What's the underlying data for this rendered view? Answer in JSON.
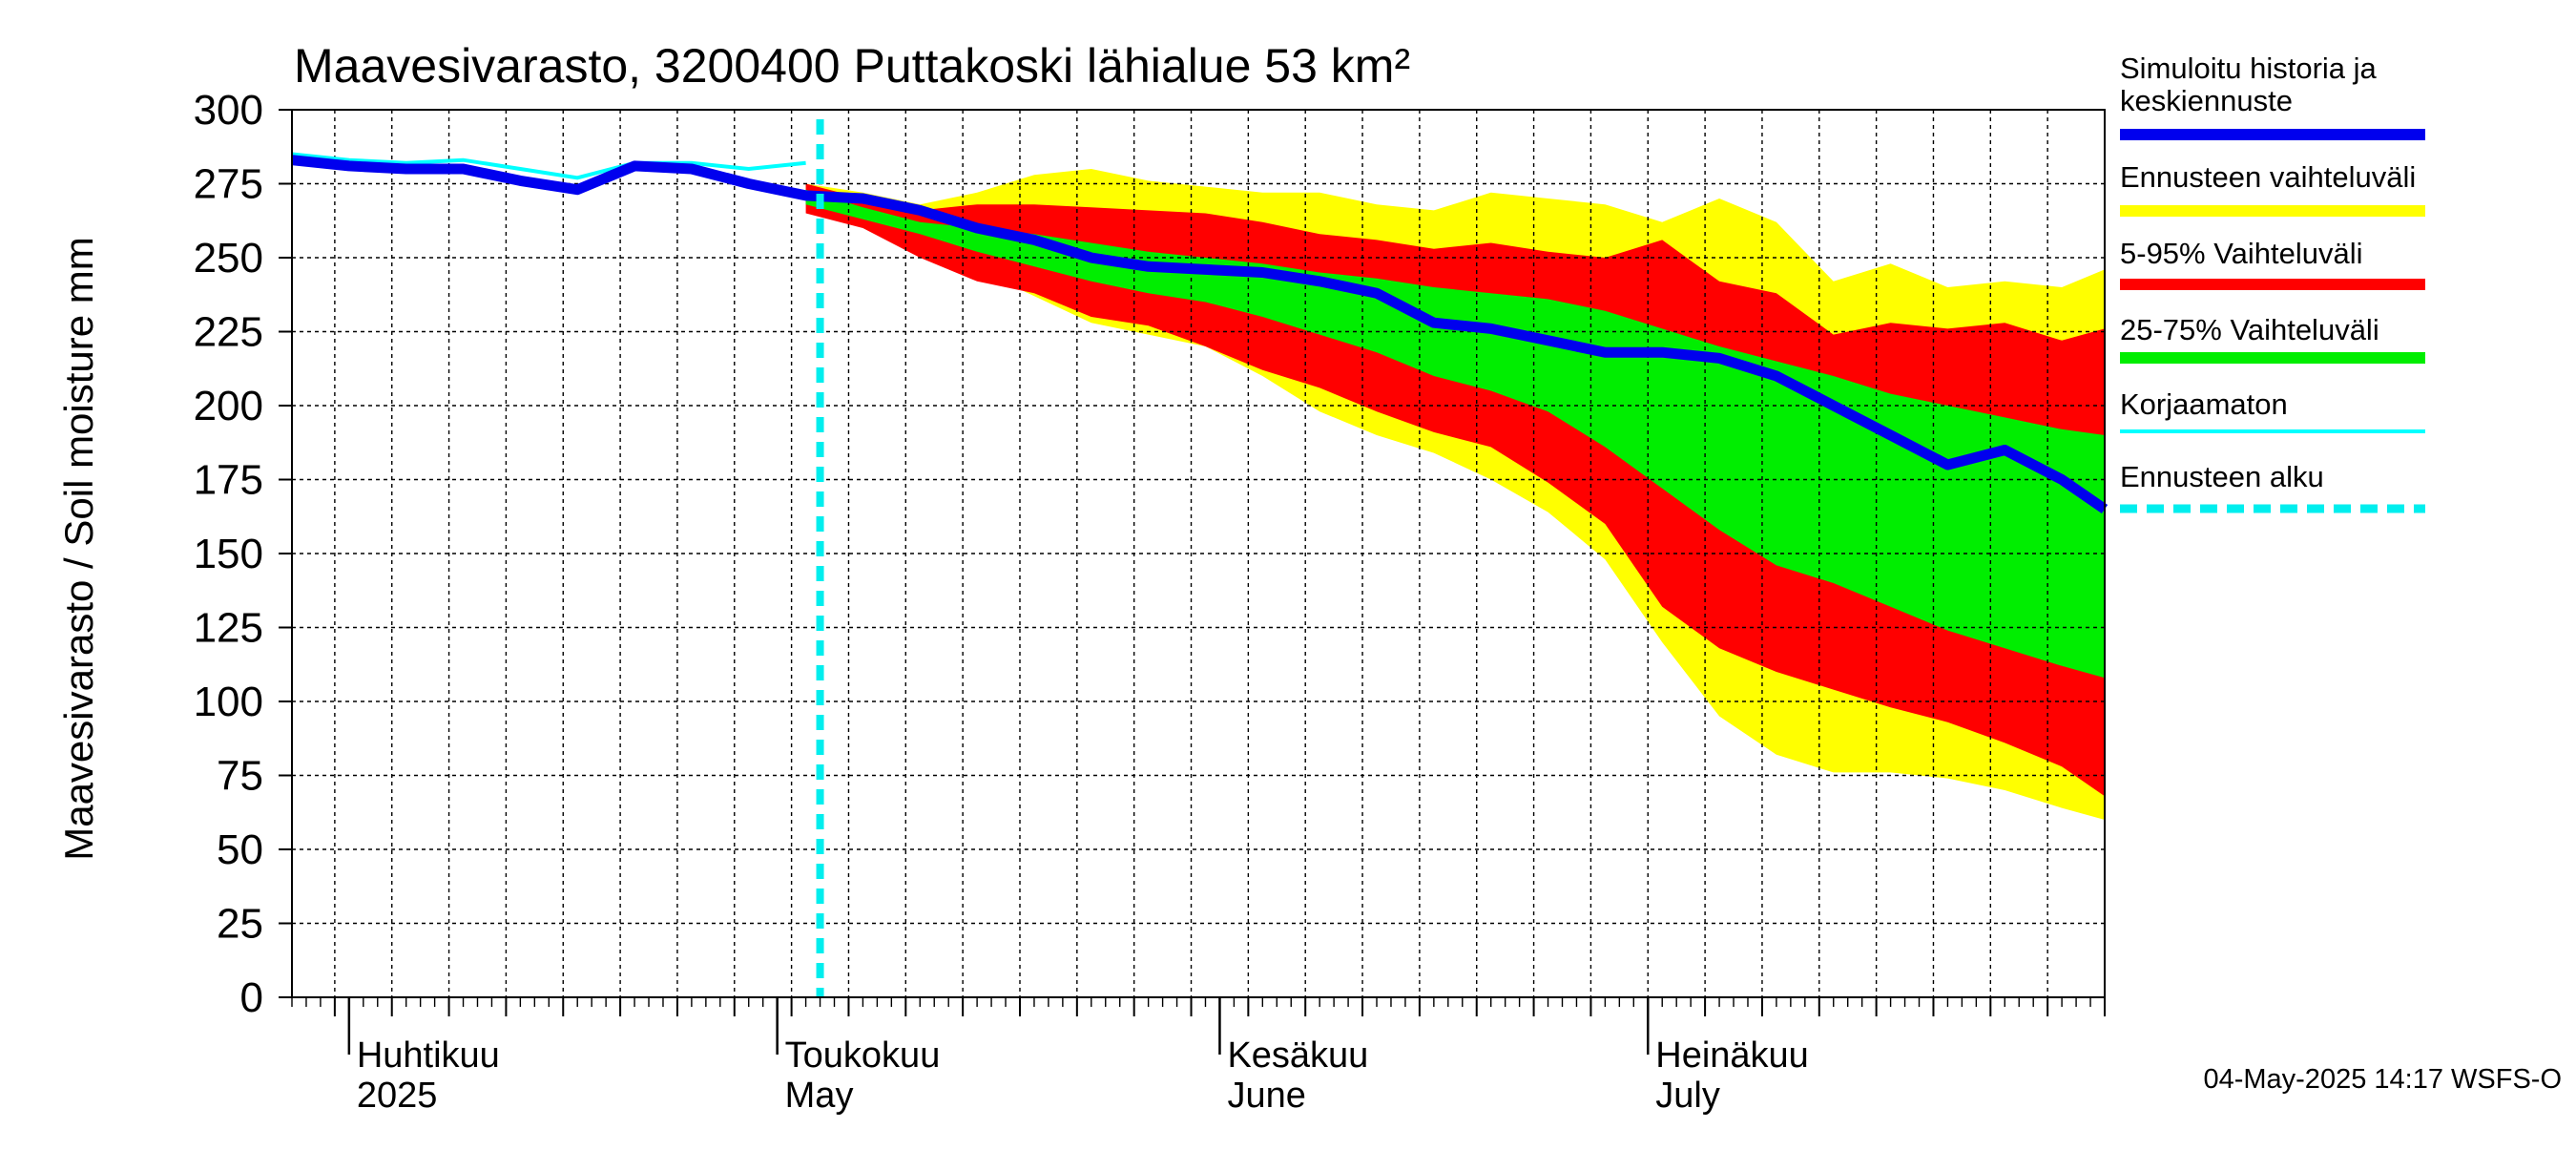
{
  "chart_data": {
    "type": "area",
    "title": "Maavesivarasto, 3200400 Puttakoski lähialue 53 km²",
    "ylabel": "Maavesivarasto / Soil moisture   mm",
    "xlabel": "",
    "ylim": [
      0,
      300
    ],
    "yticks": [
      0,
      25,
      50,
      75,
      100,
      125,
      150,
      175,
      200,
      225,
      250,
      275,
      300
    ],
    "x_start": "2025-03-28",
    "x_end": "2025-08-02",
    "forecast_start": "2025-05-04",
    "grid": true,
    "legend_position": "right",
    "month_labels": [
      {
        "date": "2025-04-01",
        "line1": "Huhtikuu",
        "line2": "2025"
      },
      {
        "date": "2025-05-01",
        "line1": "Toukokuu",
        "line2": "May"
      },
      {
        "date": "2025-06-01",
        "line1": "Kesäkuu",
        "line2": "June"
      },
      {
        "date": "2025-07-01",
        "line1": "Heinäkuu",
        "line2": "July"
      }
    ],
    "legend": [
      {
        "key": "sim",
        "label_line1": "Simuloitu historia ja",
        "label_line2": "keskiennuste",
        "color": "#0000ee",
        "style": "line"
      },
      {
        "key": "range",
        "label_line1": "Ennusteen vaihteluväli",
        "label_line2": "",
        "color": "#ffff00",
        "style": "band"
      },
      {
        "key": "p5_95",
        "label_line1": "5-95% Vaihteluväli",
        "label_line2": "",
        "color": "#ff0000",
        "style": "band"
      },
      {
        "key": "p25_75",
        "label_line1": "25-75% Vaihteluväli",
        "label_line2": "",
        "color": "#00ee00",
        "style": "band"
      },
      {
        "key": "raw",
        "label_line1": "Korjaamaton",
        "label_line2": "",
        "color": "#00ffff",
        "style": "line"
      },
      {
        "key": "fstart",
        "label_line1": "Ennusteen alku",
        "label_line2": "",
        "color": "#00eeee",
        "style": "dashed"
      }
    ],
    "forecast_days": [
      36,
      40,
      44,
      48,
      52,
      56,
      60,
      64,
      68,
      72,
      76,
      80,
      84,
      88,
      92,
      96,
      100,
      104,
      108,
      112,
      116,
      120,
      124,
      127
    ],
    "range_upper": [
      275,
      272,
      268,
      272,
      278,
      280,
      276,
      274,
      272,
      272,
      268,
      266,
      272,
      270,
      268,
      262,
      270,
      262,
      242,
      248,
      240,
      242,
      240,
      246
    ],
    "range_lower": [
      268,
      262,
      255,
      246,
      237,
      228,
      224,
      220,
      210,
      198,
      190,
      184,
      175,
      164,
      148,
      120,
      95,
      82,
      76,
      76,
      74,
      70,
      64,
      60
    ],
    "p5_95_upper": [
      275,
      270,
      266,
      268,
      268,
      267,
      266,
      265,
      262,
      258,
      256,
      253,
      255,
      252,
      250,
      256,
      242,
      238,
      224,
      228,
      226,
      228,
      222,
      226
    ],
    "p5_95_lower": [
      265,
      260,
      250,
      242,
      238,
      230,
      227,
      220,
      212,
      206,
      198,
      191,
      186,
      174,
      160,
      132,
      118,
      110,
      104,
      98,
      93,
      86,
      78,
      68
    ],
    "p25_75_upper": [
      273,
      267,
      262,
      260,
      258,
      255,
      252,
      250,
      248,
      245,
      243,
      240,
      238,
      236,
      232,
      226,
      220,
      215,
      210,
      204,
      200,
      196,
      192,
      190
    ],
    "p25_75_lower": [
      268,
      263,
      258,
      252,
      247,
      242,
      238,
      235,
      230,
      224,
      218,
      210,
      205,
      198,
      186,
      172,
      158,
      146,
      140,
      132,
      124,
      118,
      112,
      108
    ],
    "sim_days": [
      0,
      4,
      8,
      12,
      16,
      20,
      24,
      28,
      32,
      36,
      40,
      44,
      48,
      52,
      56,
      60,
      64,
      68,
      72,
      76,
      80,
      84,
      88,
      92,
      96,
      100,
      104,
      108,
      112,
      116,
      120,
      124,
      127
    ],
    "sim_values": [
      283,
      281,
      280,
      280,
      276,
      273,
      281,
      280,
      275,
      271,
      270,
      266,
      260,
      256,
      250,
      247,
      246,
      245,
      242,
      238,
      228,
      226,
      222,
      218,
      218,
      216,
      210,
      200,
      190,
      180,
      185,
      175,
      165
    ],
    "raw_days": [
      0,
      4,
      8,
      12,
      16,
      20,
      24,
      28,
      32,
      36
    ],
    "raw_values": [
      285,
      283,
      282,
      283,
      280,
      277,
      282,
      282,
      280,
      282
    ],
    "timestamp": "04-May-2025 14:17 WSFS-O"
  }
}
